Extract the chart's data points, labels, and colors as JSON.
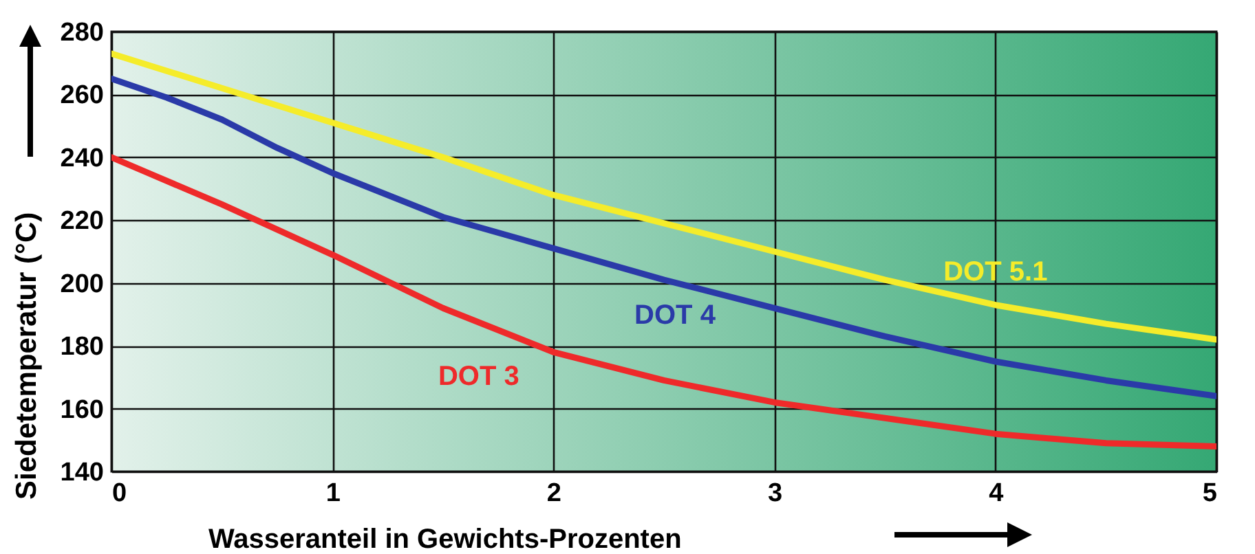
{
  "chart_data": {
    "type": "line",
    "xlabel": "Wasseranteil in Gewichts-Prozenten",
    "ylabel": "Siedetemperatur (°C)",
    "xlim": [
      0,
      5
    ],
    "xticks": [
      0,
      1,
      2,
      3,
      4,
      5
    ],
    "ylim": [
      140,
      280
    ],
    "yticks": [
      140,
      160,
      180,
      200,
      220,
      240,
      260,
      280
    ],
    "grid": true,
    "line_style": "solid",
    "marker": "none",
    "series": [
      {
        "name": "DOT 5.1",
        "color": "#f5ec2a",
        "x": [
          0,
          0.5,
          1,
          1.5,
          2,
          2.5,
          3,
          3.5,
          4,
          4.5,
          5
        ],
        "values": [
          273,
          262,
          251,
          240,
          228,
          219,
          210,
          201,
          193,
          187,
          182
        ]
      },
      {
        "name": "DOT 4",
        "color": "#2a3aa8",
        "x": [
          0,
          0.25,
          0.5,
          0.75,
          1,
          1.5,
          2,
          2.5,
          3,
          3.5,
          4,
          4.5,
          5
        ],
        "values": [
          265,
          259,
          252,
          243,
          235,
          221,
          211,
          201,
          192,
          183,
          175,
          169,
          164
        ]
      },
      {
        "name": "DOT 3",
        "color": "#ee2a2a",
        "x": [
          0,
          0.5,
          1,
          1.5,
          2,
          2.5,
          3,
          3.5,
          4,
          4.5,
          5
        ],
        "values": [
          240,
          225,
          209,
          192,
          178,
          169,
          162,
          157,
          152,
          149,
          148
        ]
      }
    ]
  }
}
